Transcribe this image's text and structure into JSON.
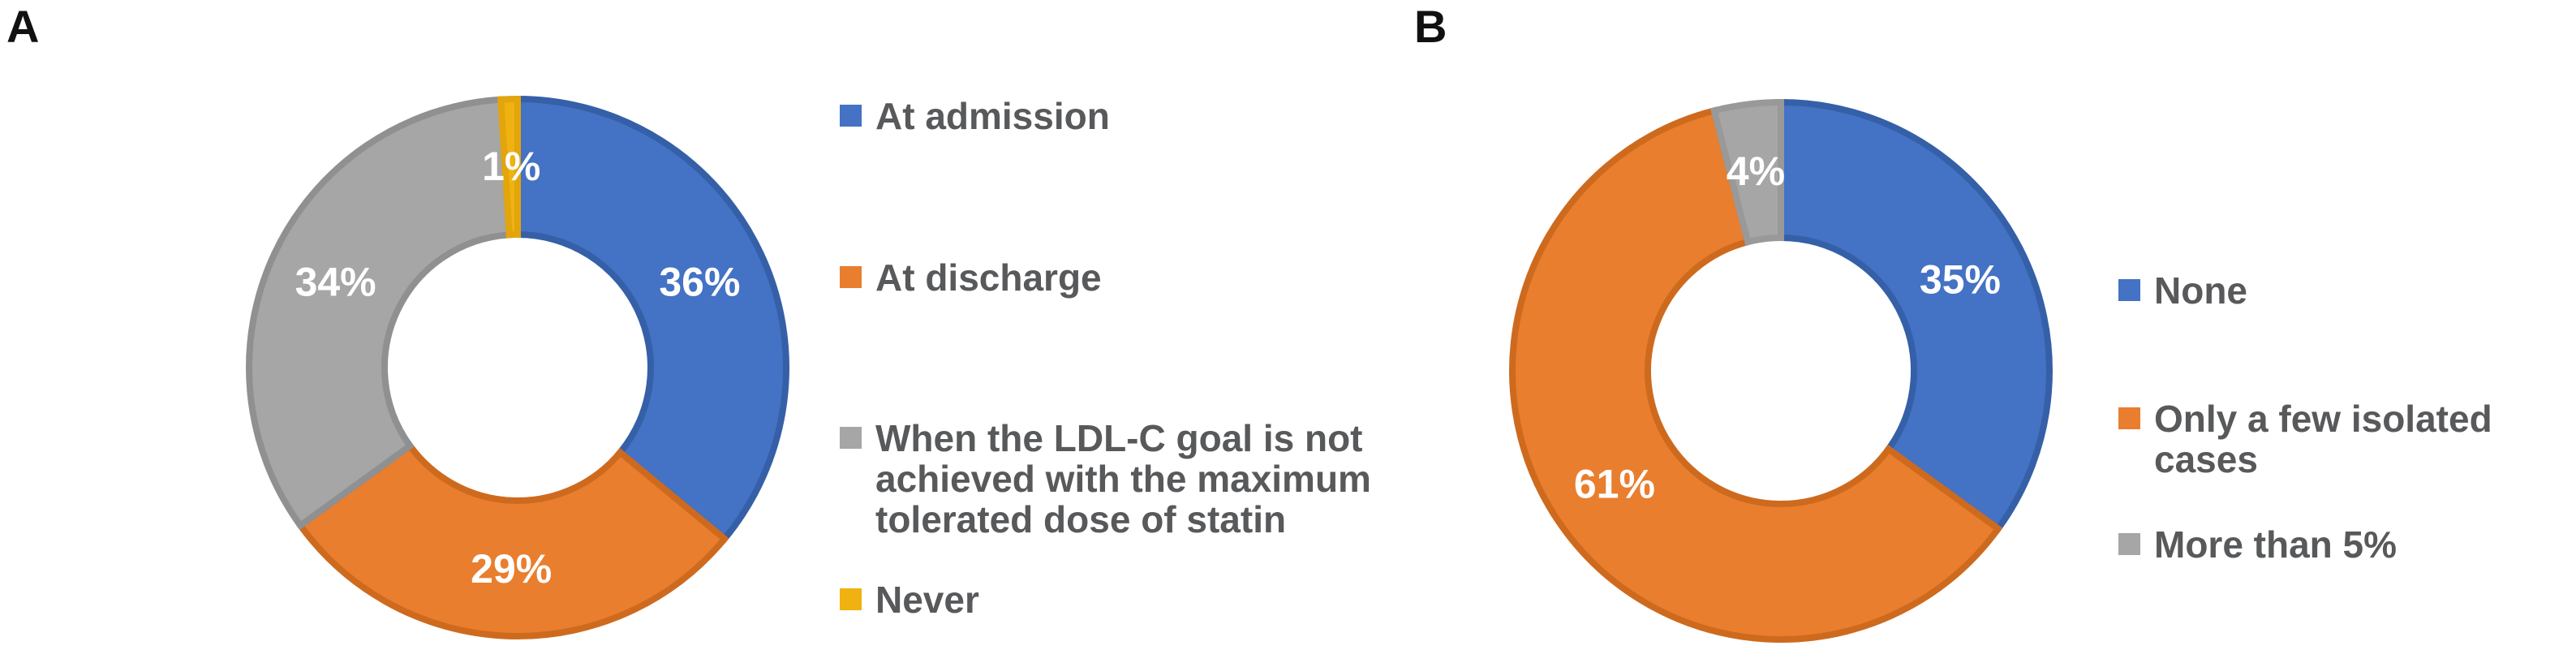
{
  "figure": {
    "background": "#ffffff",
    "panel_labels": [
      "A",
      "B"
    ]
  },
  "text_colors": {
    "panel_label": "#111111",
    "legend": "#58595B",
    "data_label": "#FFFFFF"
  },
  "chart_data": [
    {
      "type": "pie",
      "subtype": "donut",
      "panel": "A",
      "title": "",
      "legend_position": "right",
      "donut_hole_ratio": 0.5,
      "categories": [
        "At admission",
        "At discharge",
        "When the LDL-C goal is not achieved with the maximum tolerated dose of statin",
        "Never"
      ],
      "values": [
        36,
        29,
        34,
        1
      ],
      "slices": [
        {
          "category": "At admission",
          "value": 36,
          "data_label": "36%",
          "color": "#4472C4",
          "border_color": "#3560A8",
          "legend_text": "At admission"
        },
        {
          "category": "At discharge",
          "value": 29,
          "data_label": "29%",
          "color": "#E97E2E",
          "border_color": "#CE6A1E",
          "legend_text": "At discharge"
        },
        {
          "category": "When the LDL-C goal is not achieved with the maximum tolerated dose of statin",
          "value": 34,
          "data_label": "34%",
          "color": "#A6A6A6",
          "border_color": "#8F9092",
          "legend_text": "When the LDL-C goal is not\nachieved with the maximum\ntolerated dose of statin"
        },
        {
          "category": "Never",
          "value": 1,
          "data_label": "1%",
          "color": "#EFB211",
          "border_color": "#E2A50C",
          "legend_text": "Never"
        }
      ]
    },
    {
      "type": "pie",
      "subtype": "donut",
      "panel": "B",
      "title": "",
      "legend_position": "right",
      "donut_hole_ratio": 0.5,
      "categories": [
        "None",
        "Only a few isolated cases",
        "More than 5%"
      ],
      "values": [
        35,
        61,
        4
      ],
      "slices": [
        {
          "category": "None",
          "value": 35,
          "data_label": "35%",
          "color": "#4472C4",
          "border_color": "#3560A8",
          "legend_text": "None"
        },
        {
          "category": "Only a few isolated cases",
          "value": 61,
          "data_label": "61%",
          "color": "#E97E2E",
          "border_color": "#CE6A1E",
          "legend_text": "Only a few isolated cases"
        },
        {
          "category": "More than 5%",
          "value": 4,
          "data_label": "4%",
          "color": "#A6A6A6",
          "border_color": "#999999",
          "legend_text": "More than 5%"
        }
      ]
    }
  ]
}
